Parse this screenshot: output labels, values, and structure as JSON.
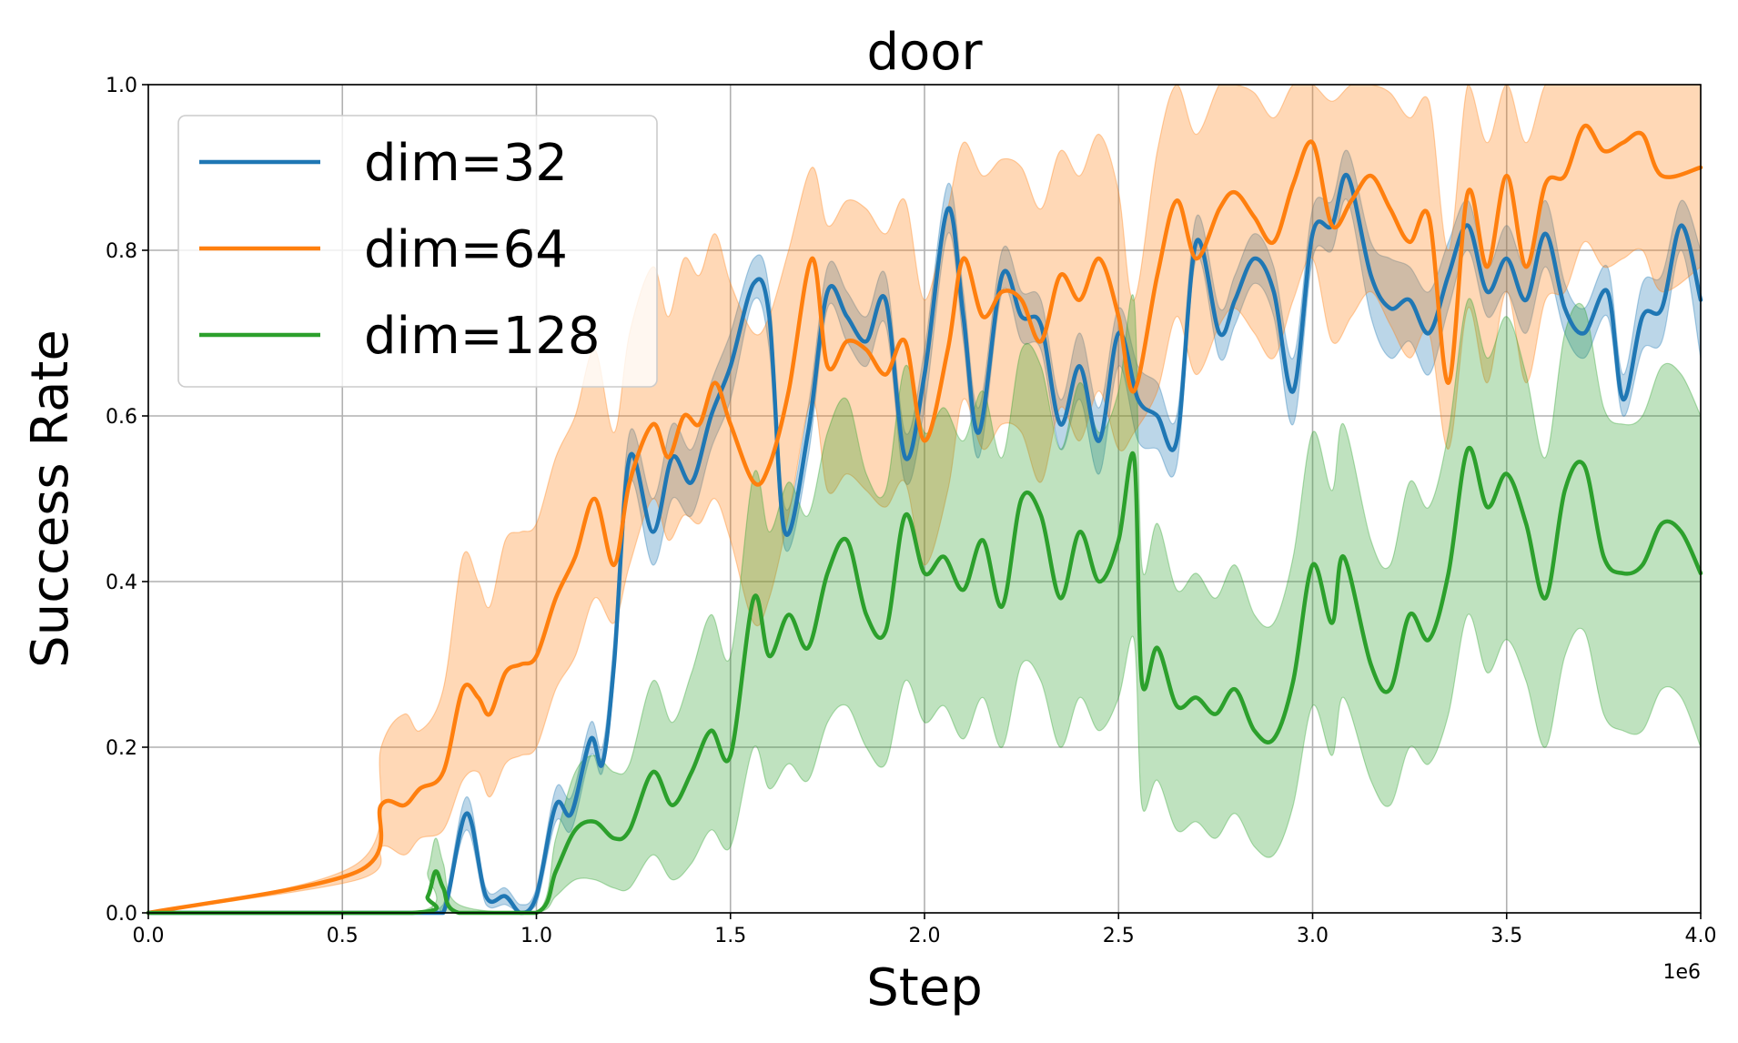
{
  "chart_data": {
    "type": "line",
    "title": "door",
    "xlabel": "Step",
    "ylabel": "Success Rate",
    "x_offset_label": "1e6",
    "xlim": [
      0,
      4000000
    ],
    "ylim": [
      0,
      1
    ],
    "xticks": [
      0,
      500000,
      1000000,
      1500000,
      2000000,
      2500000,
      3000000,
      3500000,
      4000000
    ],
    "xtick_labels": [
      "0.0",
      "0.5",
      "1.0",
      "1.5",
      "2.0",
      "2.5",
      "3.0",
      "3.5",
      "4.0"
    ],
    "yticks": [
      0,
      0.2,
      0.4,
      0.6,
      0.8,
      1.0
    ],
    "ytick_labels": [
      "0.0",
      "0.2",
      "0.4",
      "0.6",
      "0.8",
      "1.0"
    ],
    "grid": true,
    "legend_position": "top-left",
    "series": [
      {
        "name": "dim=32",
        "color": "#1f77b4",
        "x": [
          0,
          500000,
          700000,
          760000,
          820000,
          870000,
          920000,
          960000,
          1000000,
          1050000,
          1090000,
          1140000,
          1170000,
          1200000,
          1240000,
          1300000,
          1350000,
          1400000,
          1450000,
          1500000,
          1560000,
          1600000,
          1640000,
          1700000,
          1750000,
          1800000,
          1850000,
          1900000,
          1950000,
          2000000,
          2060000,
          2100000,
          2140000,
          2200000,
          2250000,
          2300000,
          2350000,
          2400000,
          2450000,
          2500000,
          2550000,
          2600000,
          2650000,
          2700000,
          2760000,
          2800000,
          2850000,
          2900000,
          2950000,
          3000000,
          3050000,
          3090000,
          3150000,
          3200000,
          3250000,
          3300000,
          3350000,
          3400000,
          3450000,
          3500000,
          3550000,
          3600000,
          3650000,
          3700000,
          3760000,
          3800000,
          3850000,
          3900000,
          3950000,
          4000000
        ],
        "y": [
          0,
          0,
          0,
          0.0,
          0.12,
          0.02,
          0.02,
          0.0,
          0.02,
          0.13,
          0.12,
          0.21,
          0.18,
          0.3,
          0.55,
          0.46,
          0.55,
          0.52,
          0.6,
          0.66,
          0.76,
          0.72,
          0.46,
          0.58,
          0.75,
          0.72,
          0.69,
          0.74,
          0.55,
          0.65,
          0.85,
          0.72,
          0.58,
          0.77,
          0.72,
          0.71,
          0.59,
          0.66,
          0.57,
          0.7,
          0.62,
          0.6,
          0.57,
          0.81,
          0.7,
          0.74,
          0.79,
          0.75,
          0.63,
          0.82,
          0.83,
          0.89,
          0.77,
          0.73,
          0.74,
          0.7,
          0.77,
          0.83,
          0.75,
          0.79,
          0.74,
          0.82,
          0.73,
          0.7,
          0.75,
          0.62,
          0.72,
          0.73,
          0.83,
          0.74
        ],
        "lower": [
          0,
          0,
          0,
          0.0,
          0.1,
          0.01,
          0.01,
          0.0,
          0.01,
          0.11,
          0.1,
          0.19,
          0.17,
          0.28,
          0.52,
          0.42,
          0.5,
          0.48,
          0.56,
          0.62,
          0.74,
          0.68,
          0.44,
          0.55,
          0.73,
          0.69,
          0.66,
          0.71,
          0.52,
          0.61,
          0.82,
          0.69,
          0.55,
          0.75,
          0.69,
          0.68,
          0.56,
          0.62,
          0.53,
          0.66,
          0.57,
          0.56,
          0.54,
          0.79,
          0.67,
          0.71,
          0.76,
          0.72,
          0.59,
          0.79,
          0.8,
          0.86,
          0.72,
          0.67,
          0.69,
          0.65,
          0.73,
          0.8,
          0.72,
          0.75,
          0.7,
          0.78,
          0.7,
          0.67,
          0.72,
          0.6,
          0.68,
          0.69,
          0.8,
          0.67
        ],
        "upper": [
          0,
          0,
          0,
          0.01,
          0.14,
          0.03,
          0.03,
          0.01,
          0.03,
          0.15,
          0.14,
          0.23,
          0.2,
          0.33,
          0.58,
          0.5,
          0.59,
          0.56,
          0.64,
          0.7,
          0.79,
          0.75,
          0.49,
          0.61,
          0.78,
          0.75,
          0.72,
          0.77,
          0.58,
          0.68,
          0.88,
          0.75,
          0.61,
          0.8,
          0.75,
          0.74,
          0.62,
          0.7,
          0.61,
          0.73,
          0.66,
          0.64,
          0.6,
          0.84,
          0.73,
          0.77,
          0.82,
          0.78,
          0.67,
          0.85,
          0.86,
          0.92,
          0.81,
          0.79,
          0.78,
          0.75,
          0.81,
          0.86,
          0.78,
          0.83,
          0.78,
          0.86,
          0.76,
          0.73,
          0.78,
          0.65,
          0.76,
          0.77,
          0.86,
          0.8
        ]
      },
      {
        "name": "dim=64",
        "color": "#ff7f0e",
        "x": [
          0,
          540000,
          600000,
          660000,
          700000,
          760000,
          810000,
          850000,
          880000,
          920000,
          960000,
          1000000,
          1050000,
          1100000,
          1150000,
          1200000,
          1240000,
          1300000,
          1340000,
          1380000,
          1420000,
          1460000,
          1500000,
          1560000,
          1600000,
          1650000,
          1710000,
          1750000,
          1800000,
          1850000,
          1900000,
          1950000,
          2000000,
          2060000,
          2100000,
          2150000,
          2200000,
          2250000,
          2300000,
          2350000,
          2400000,
          2450000,
          2500000,
          2540000,
          2600000,
          2650000,
          2700000,
          2760000,
          2800000,
          2850000,
          2900000,
          2950000,
          3000000,
          3050000,
          3100000,
          3150000,
          3200000,
          3250000,
          3300000,
          3350000,
          3400000,
          3450000,
          3500000,
          3550000,
          3600000,
          3650000,
          3700000,
          3750000,
          3800000,
          3850000,
          3900000,
          4000000
        ],
        "y": [
          0.0,
          0.05,
          0.13,
          0.13,
          0.15,
          0.17,
          0.27,
          0.26,
          0.24,
          0.29,
          0.3,
          0.31,
          0.38,
          0.43,
          0.5,
          0.42,
          0.52,
          0.59,
          0.55,
          0.6,
          0.59,
          0.64,
          0.59,
          0.52,
          0.54,
          0.63,
          0.79,
          0.66,
          0.69,
          0.68,
          0.65,
          0.69,
          0.57,
          0.68,
          0.79,
          0.72,
          0.75,
          0.74,
          0.69,
          0.77,
          0.74,
          0.79,
          0.72,
          0.63,
          0.77,
          0.86,
          0.79,
          0.85,
          0.87,
          0.84,
          0.81,
          0.88,
          0.93,
          0.83,
          0.86,
          0.89,
          0.85,
          0.81,
          0.84,
          0.64,
          0.87,
          0.78,
          0.89,
          0.78,
          0.88,
          0.89,
          0.95,
          0.92,
          0.93,
          0.94,
          0.89,
          0.9
        ],
        "lower": [
          0.0,
          0.04,
          0.08,
          0.07,
          0.09,
          0.1,
          0.16,
          0.17,
          0.14,
          0.18,
          0.19,
          0.2,
          0.27,
          0.31,
          0.38,
          0.35,
          0.42,
          0.5,
          0.45,
          0.48,
          0.47,
          0.5,
          0.45,
          0.35,
          0.38,
          0.48,
          0.62,
          0.51,
          0.53,
          0.51,
          0.49,
          0.52,
          0.42,
          0.51,
          0.62,
          0.56,
          0.59,
          0.58,
          0.52,
          0.61,
          0.57,
          0.63,
          0.56,
          0.58,
          0.63,
          0.72,
          0.65,
          0.71,
          0.73,
          0.7,
          0.67,
          0.74,
          0.79,
          0.69,
          0.72,
          0.75,
          0.71,
          0.67,
          0.7,
          0.56,
          0.73,
          0.64,
          0.75,
          0.64,
          0.74,
          0.75,
          0.81,
          0.78,
          0.79,
          0.8,
          0.75,
          0.78
        ],
        "upper": [
          0.0,
          0.06,
          0.2,
          0.24,
          0.22,
          0.27,
          0.43,
          0.4,
          0.37,
          0.45,
          0.46,
          0.47,
          0.55,
          0.6,
          0.68,
          0.58,
          0.7,
          0.78,
          0.72,
          0.79,
          0.77,
          0.82,
          0.76,
          0.7,
          0.72,
          0.8,
          0.9,
          0.83,
          0.86,
          0.85,
          0.82,
          0.86,
          0.74,
          0.85,
          0.93,
          0.89,
          0.91,
          0.9,
          0.85,
          0.92,
          0.89,
          0.94,
          0.87,
          0.74,
          0.92,
          1.0,
          0.94,
          1.0,
          1.0,
          0.99,
          0.96,
          1.0,
          1.0,
          0.98,
          1.0,
          1.0,
          0.99,
          0.96,
          0.98,
          0.8,
          1.0,
          0.93,
          1.0,
          0.93,
          1.0,
          1.0,
          1.0,
          1.0,
          1.0,
          1.0,
          1.0,
          1.0
        ]
      },
      {
        "name": "dim=128",
        "color": "#2ca02c",
        "x": [
          0,
          680000,
          720000,
          740000,
          760000,
          800000,
          1000000,
          1050000,
          1100000,
          1150000,
          1200000,
          1240000,
          1300000,
          1350000,
          1400000,
          1450000,
          1500000,
          1560000,
          1600000,
          1650000,
          1700000,
          1750000,
          1800000,
          1850000,
          1900000,
          1950000,
          2000000,
          2050000,
          2100000,
          2150000,
          2200000,
          2250000,
          2300000,
          2350000,
          2400000,
          2450000,
          2500000,
          2540000,
          2560000,
          2600000,
          2650000,
          2700000,
          2750000,
          2800000,
          2850000,
          2900000,
          2950000,
          3000000,
          3050000,
          3080000,
          3150000,
          3200000,
          3250000,
          3300000,
          3350000,
          3400000,
          3450000,
          3500000,
          3550000,
          3600000,
          3650000,
          3700000,
          3750000,
          3800000,
          3850000,
          3900000,
          3950000,
          4000000
        ],
        "y": [
          0,
          0,
          0.02,
          0.05,
          0.03,
          0.0,
          0.0,
          0.05,
          0.1,
          0.11,
          0.09,
          0.1,
          0.17,
          0.13,
          0.17,
          0.22,
          0.19,
          0.38,
          0.31,
          0.36,
          0.32,
          0.41,
          0.45,
          0.36,
          0.34,
          0.48,
          0.41,
          0.43,
          0.39,
          0.45,
          0.37,
          0.5,
          0.48,
          0.38,
          0.46,
          0.4,
          0.45,
          0.55,
          0.28,
          0.32,
          0.25,
          0.26,
          0.24,
          0.27,
          0.22,
          0.21,
          0.28,
          0.42,
          0.35,
          0.43,
          0.3,
          0.27,
          0.36,
          0.33,
          0.41,
          0.56,
          0.49,
          0.53,
          0.47,
          0.38,
          0.51,
          0.54,
          0.43,
          0.41,
          0.42,
          0.47,
          0.46,
          0.41
        ],
        "lower": [
          0,
          0,
          0.0,
          0.01,
          0.0,
          0.0,
          0.0,
          0.02,
          0.04,
          0.04,
          0.03,
          0.03,
          0.07,
          0.04,
          0.06,
          0.1,
          0.08,
          0.2,
          0.15,
          0.18,
          0.16,
          0.23,
          0.25,
          0.2,
          0.18,
          0.28,
          0.23,
          0.25,
          0.21,
          0.26,
          0.2,
          0.3,
          0.28,
          0.2,
          0.26,
          0.22,
          0.26,
          0.33,
          0.13,
          0.16,
          0.1,
          0.11,
          0.09,
          0.12,
          0.08,
          0.07,
          0.13,
          0.25,
          0.19,
          0.26,
          0.16,
          0.13,
          0.2,
          0.18,
          0.24,
          0.36,
          0.29,
          0.33,
          0.28,
          0.2,
          0.31,
          0.34,
          0.24,
          0.22,
          0.22,
          0.27,
          0.26,
          0.2
        ],
        "upper": [
          0,
          0,
          0.05,
          0.09,
          0.06,
          0.01,
          0.0,
          0.09,
          0.17,
          0.19,
          0.17,
          0.18,
          0.28,
          0.23,
          0.29,
          0.36,
          0.31,
          0.53,
          0.46,
          0.52,
          0.48,
          0.58,
          0.62,
          0.53,
          0.51,
          0.66,
          0.58,
          0.61,
          0.57,
          0.63,
          0.55,
          0.68,
          0.66,
          0.56,
          0.64,
          0.58,
          0.63,
          0.74,
          0.42,
          0.47,
          0.39,
          0.41,
          0.38,
          0.42,
          0.36,
          0.35,
          0.43,
          0.58,
          0.51,
          0.59,
          0.45,
          0.42,
          0.52,
          0.49,
          0.58,
          0.74,
          0.67,
          0.72,
          0.65,
          0.55,
          0.7,
          0.73,
          0.61,
          0.59,
          0.6,
          0.66,
          0.65,
          0.6
        ]
      }
    ]
  }
}
